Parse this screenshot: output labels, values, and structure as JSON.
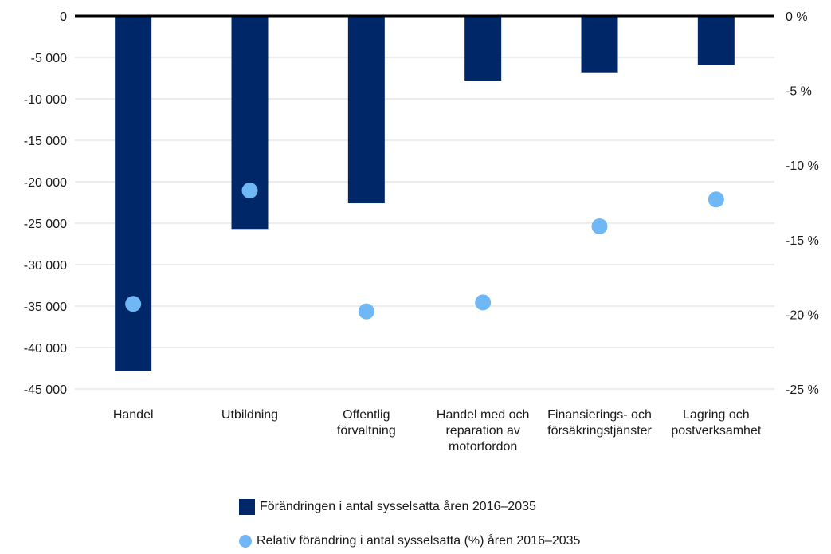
{
  "chart_data": {
    "type": "bar",
    "categories": [
      [
        "Handel"
      ],
      [
        "Utbildning"
      ],
      [
        "Offentlig",
        "förvaltning"
      ],
      [
        "Handel med och",
        "reparation av",
        "motorfordon"
      ],
      [
        "Finansierings- och",
        "försäkringstjänster"
      ],
      [
        "Lagring och",
        "postverksamhet"
      ]
    ],
    "series": [
      {
        "name": "Förändringen i antal sysselsatta åren 2016–2035",
        "kind": "bar",
        "axis": "left",
        "values": [
          -42800,
          -25700,
          -22600,
          -7800,
          -6800,
          -5900
        ]
      },
      {
        "name": "Relativ förändring i antal sysselsatta (%) åren 2016–2035",
        "kind": "scatter",
        "axis": "right",
        "values": [
          -19.3,
          -11.7,
          -19.8,
          -19.2,
          -14.1,
          -12.3
        ]
      }
    ],
    "y_left": {
      "lim": [
        -45000,
        0
      ],
      "ticks": [
        0,
        -5000,
        -10000,
        -15000,
        -20000,
        -25000,
        -30000,
        -35000,
        -40000,
        -45000
      ],
      "tick_labels": [
        "0",
        "-5 000",
        "-10 000",
        "-15 000",
        "-20 000",
        "-25 000",
        "-30 000",
        "-35 000",
        "-40 000",
        "-45 000"
      ]
    },
    "y_right": {
      "lim": [
        -25,
        0
      ],
      "ticks": [
        0,
        -5,
        -10,
        -15,
        -20,
        -25
      ],
      "tick_labels": [
        "0 %",
        "-5 %",
        "-10 %",
        "-15 %",
        "-20 %",
        "-25 %"
      ]
    },
    "grid": true,
    "legend_position": "bottom",
    "colors": {
      "bar": "#002868",
      "dot": "#6fb7f5",
      "grid": "#d9d9d9",
      "zero_line": "#000000"
    }
  }
}
